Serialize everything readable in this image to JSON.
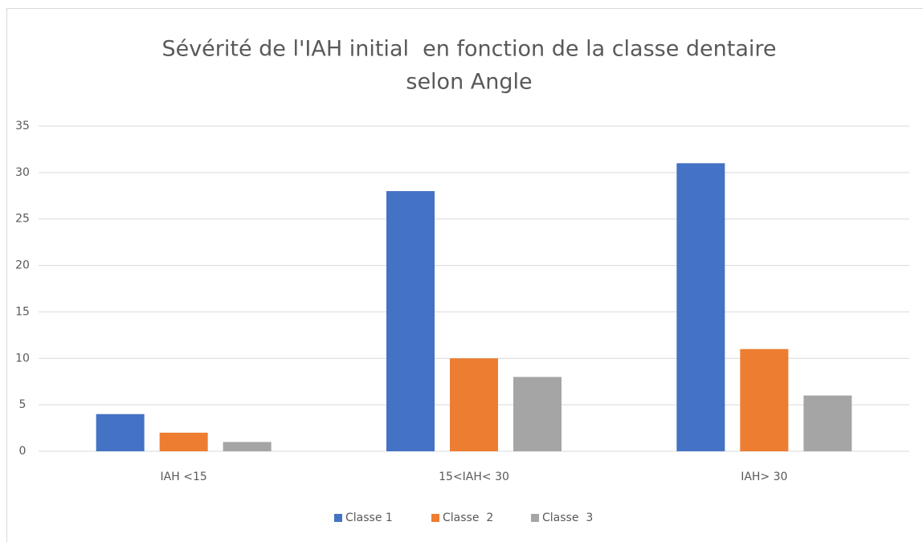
{
  "chart_data": {
    "type": "bar",
    "title": [
      "Sévérité de l'IAH initial  en fonction de la classe dentaire",
      "selon Angle"
    ],
    "categories": [
      "IAH <15",
      "15<IAH< 30",
      "IAH> 30"
    ],
    "series": [
      {
        "name": "Classe 1",
        "color": "#4472c4",
        "values": [
          4,
          28,
          31
        ]
      },
      {
        "name": "Classe  2",
        "color": "#ed7d31",
        "values": [
          2,
          10,
          11
        ]
      },
      {
        "name": "Classe  3",
        "color": "#a5a5a5",
        "values": [
          1,
          8,
          6
        ]
      }
    ],
    "ylim": [
      0,
      35
    ],
    "yticks": [
      0,
      5,
      10,
      15,
      20,
      25,
      30,
      35
    ],
    "grid": true,
    "legend": "bottom"
  }
}
